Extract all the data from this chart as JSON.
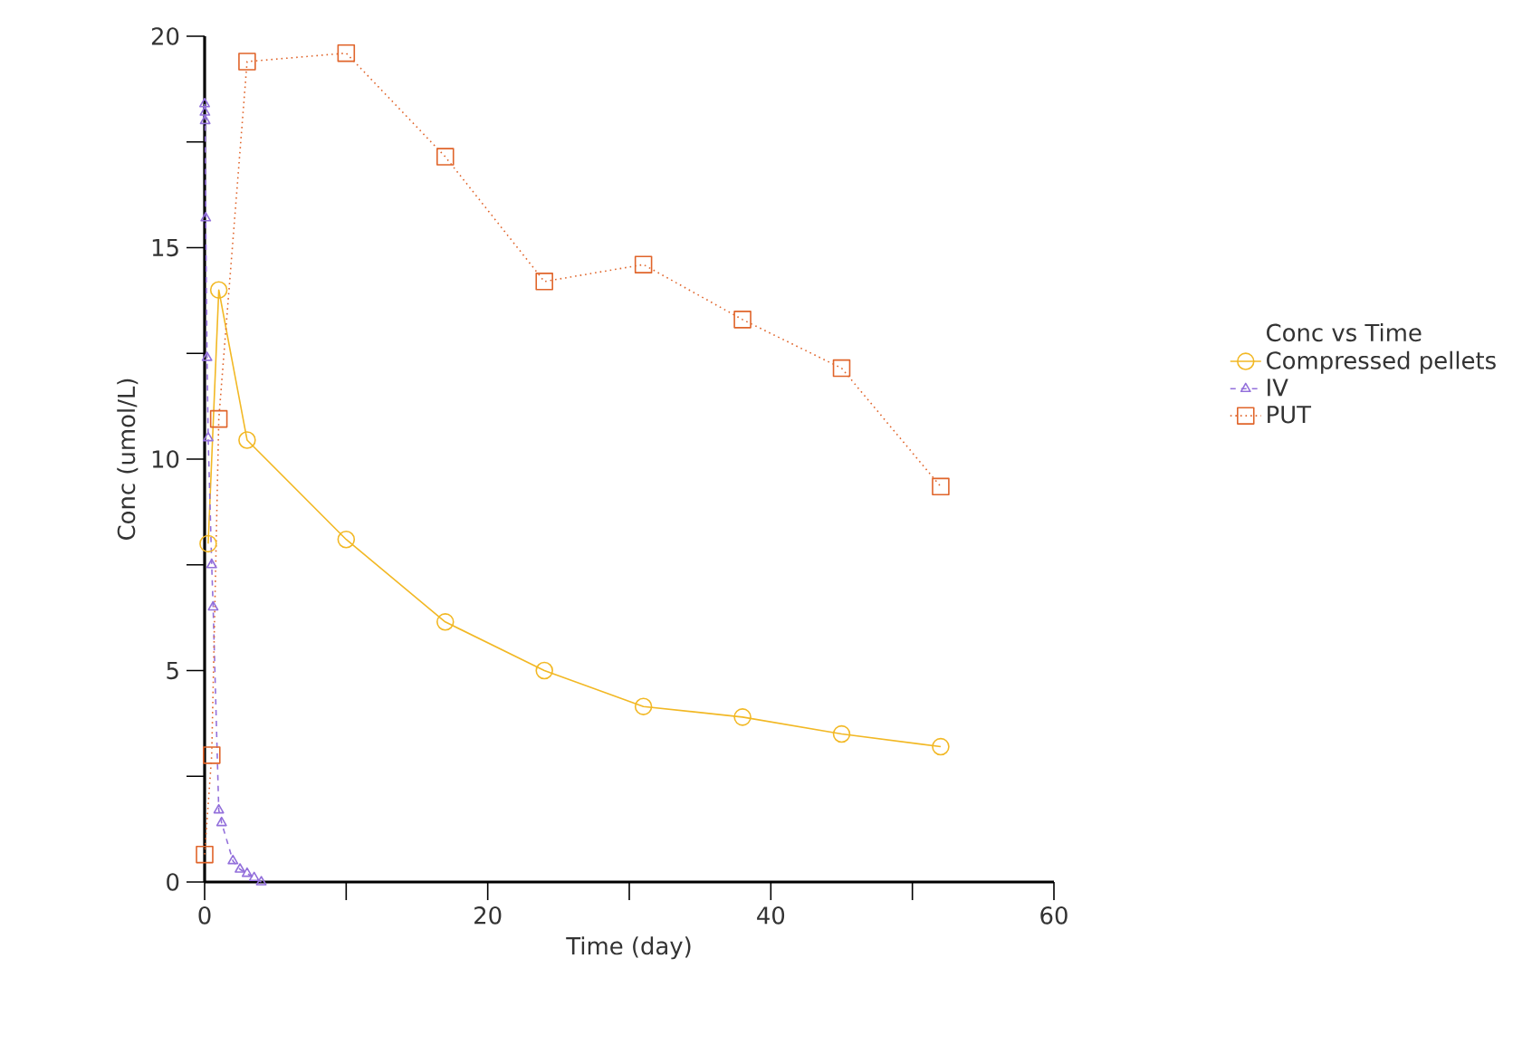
{
  "chart_data": {
    "type": "line",
    "xlabel": "Time (day)",
    "ylabel": "Conc (umol/L)",
    "legend_title": "Conc vs Time",
    "legend": "right",
    "grid": false,
    "xlim": [
      0,
      60
    ],
    "ylim": [
      0,
      20
    ],
    "xticks": [
      0,
      {
        "value": 10,
        "label": null
      },
      20,
      {
        "value": 30,
        "label": null
      },
      40,
      {
        "value": 50,
        "label": null
      },
      60
    ],
    "yticks": [
      0,
      {
        "value": 2.5,
        "label": null
      },
      5,
      {
        "value": 7.5,
        "label": null
      },
      10,
      {
        "value": 12.5,
        "label": null
      },
      15,
      {
        "value": 17.5,
        "label": null
      },
      20
    ],
    "series": [
      {
        "name": "Compressed pellets",
        "color": "#f2b824",
        "marker": "circle",
        "line_style": "solid",
        "x": [
          0.25,
          1,
          3,
          10,
          17,
          24,
          31,
          38,
          45,
          52
        ],
        "values": [
          8.0,
          14.0,
          10.45,
          8.1,
          6.15,
          5.0,
          4.15,
          3.9,
          3.5,
          3.2
        ]
      },
      {
        "name": "IV",
        "color": "#9370db",
        "marker": "triangle",
        "line_style": "dashed",
        "x": [
          0.0,
          0.02,
          0.04,
          0.08,
          0.17,
          0.25,
          0.5,
          0.6,
          1,
          1.2,
          2,
          2.5,
          3,
          3.5,
          4
        ],
        "values": [
          18.4,
          18.2,
          18.0,
          15.7,
          12.4,
          10.5,
          7.5,
          6.5,
          1.7,
          1.4,
          0.5,
          0.3,
          0.2,
          0.1,
          0.0
        ]
      },
      {
        "name": "PUT",
        "color": "#e0642a",
        "marker": "square",
        "line_style": "dotted",
        "x": [
          0,
          0.5,
          1,
          3,
          10,
          17,
          24,
          31,
          38,
          45,
          52
        ],
        "values": [
          0.65,
          3.0,
          10.95,
          19.4,
          19.6,
          17.15,
          14.2,
          14.6,
          13.3,
          12.15,
          9.35
        ]
      }
    ]
  }
}
